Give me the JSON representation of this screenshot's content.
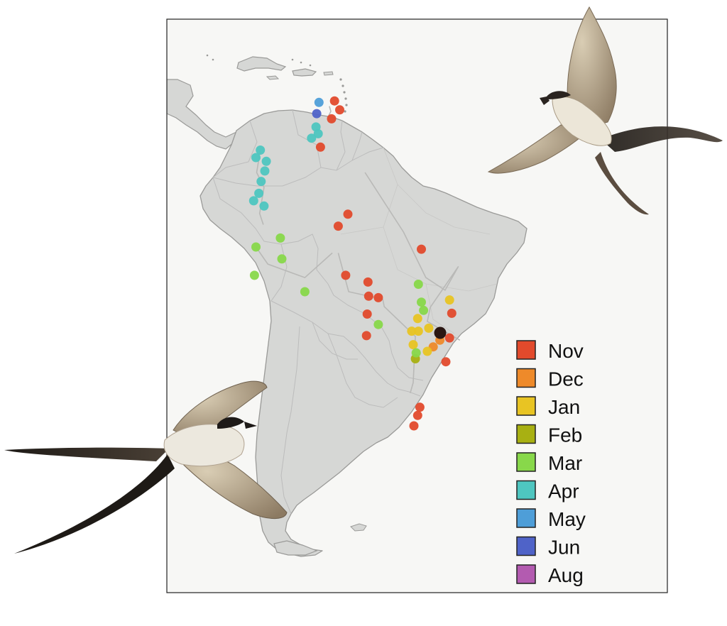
{
  "map": {
    "colors": {
      "background": "#f7f7f5",
      "land": "#d6d7d5",
      "coast": "#9a9a98",
      "borders": "#bcbcbc",
      "track": "#b9b9b7",
      "frame": "#222222"
    }
  },
  "legend": {
    "items": [
      {
        "label": "Nov",
        "color": "#e24a2c"
      },
      {
        "label": "Dec",
        "color": "#ee8a2a"
      },
      {
        "label": "Jan",
        "color": "#e8c423"
      },
      {
        "label": "Feb",
        "color": "#a8b012"
      },
      {
        "label": "Mar",
        "color": "#88d84a"
      },
      {
        "label": "Apr",
        "color": "#4ec6c0"
      },
      {
        "label": "May",
        "color": "#4e9ed8"
      },
      {
        "label": "Jun",
        "color": "#4f63c8"
      },
      {
        "label": "Aug",
        "color": "#b35bb0"
      }
    ]
  },
  "tracks": [
    {
      "month": "Nov",
      "points": [
        [
          -60.2,
          6.9
        ],
        [
          -60.0,
          6.2
        ],
        [
          -60.3,
          5.6
        ]
      ]
    },
    {
      "month": "Nov",
      "points": [
        [
          -55.4,
          -2.0
        ],
        [
          -50.2,
          -10.0
        ],
        [
          -47.2,
          -16.1
        ],
        [
          -44.6,
          -17.8
        ],
        [
          -42.8,
          -14.6
        ],
        [
          -46.6,
          -20.1
        ],
        [
          -47.0,
          -22.0
        ],
        [
          -42.6,
          -24.5
        ]
      ]
    },
    {
      "month": "Nov",
      "points": [
        [
          -59.0,
          -12.8
        ],
        [
          -57.6,
          -18.0
        ],
        [
          -53.0,
          -19.0
        ],
        [
          -52.8,
          -20.0
        ],
        [
          -48.6,
          -24.0
        ],
        [
          -48.9,
          -30.2
        ],
        [
          -49.3,
          -31.6
        ]
      ]
    },
    {
      "month": "Mar",
      "points": [
        [
          -70.1,
          -12.0
        ],
        [
          -68.5,
          -14.3
        ],
        [
          -63.5,
          -16.1
        ],
        [
          -59.8,
          -12.8
        ]
      ]
    },
    {
      "month": "Apr",
      "points": [
        [
          -69.5,
          1.0
        ],
        [
          -70.0,
          -2.0
        ],
        [
          -69.0,
          -4.0
        ],
        [
          -69.6,
          -7.5
        ],
        [
          -69.1,
          -9.0
        ]
      ]
    }
  ],
  "points": [
    {
      "month": "Nov",
      "lon": -59.5,
      "lat": 7.6
    },
    {
      "month": "Nov",
      "lon": -58.8,
      "lat": 6.4
    },
    {
      "month": "Nov",
      "lon": -59.9,
      "lat": 5.2
    },
    {
      "month": "Nov",
      "lon": -61.4,
      "lat": 1.4
    },
    {
      "month": "Nov",
      "lon": -57.7,
      "lat": -7.6
    },
    {
      "month": "Nov",
      "lon": -59.0,
      "lat": -9.2
    },
    {
      "month": "Nov",
      "lon": -58.0,
      "lat": -15.8
    },
    {
      "month": "Nov",
      "lon": -55.0,
      "lat": -16.7
    },
    {
      "month": "Nov",
      "lon": -54.9,
      "lat": -18.6
    },
    {
      "month": "Nov",
      "lon": -53.6,
      "lat": -18.8
    },
    {
      "month": "Nov",
      "lon": -55.1,
      "lat": -21.0
    },
    {
      "month": "Nov",
      "lon": -47.8,
      "lat": -12.3
    },
    {
      "month": "Nov",
      "lon": -55.2,
      "lat": -23.9
    },
    {
      "month": "Nov",
      "lon": -43.7,
      "lat": -20.9
    },
    {
      "month": "Nov",
      "lon": -44.0,
      "lat": -24.2
    },
    {
      "month": "Nov",
      "lon": -44.5,
      "lat": -27.4
    },
    {
      "month": "Nov",
      "lon": -48.0,
      "lat": -33.5
    },
    {
      "month": "Nov",
      "lon": -48.3,
      "lat": -34.6
    },
    {
      "month": "Nov",
      "lon": -48.8,
      "lat": -36.0
    },
    {
      "month": "Dec",
      "lon": -45.3,
      "lat": -24.5
    },
    {
      "month": "Dec",
      "lon": -46.2,
      "lat": -25.4
    },
    {
      "month": "Jan",
      "lon": -44.0,
      "lat": -19.1
    },
    {
      "month": "Jan",
      "lon": -48.3,
      "lat": -21.6
    },
    {
      "month": "Jan",
      "lon": -48.2,
      "lat": -23.3
    },
    {
      "month": "Jan",
      "lon": -49.1,
      "lat": -23.3
    },
    {
      "month": "Jan",
      "lon": -46.8,
      "lat": -22.9
    },
    {
      "month": "Jan",
      "lon": -47.0,
      "lat": -26.0
    },
    {
      "month": "Jan",
      "lon": -48.9,
      "lat": -25.1
    },
    {
      "month": "Feb",
      "lon": -48.6,
      "lat": -27.0
    },
    {
      "month": "Mar",
      "lon": -70.1,
      "lat": -12.0
    },
    {
      "month": "Mar",
      "lon": -66.8,
      "lat": -10.8
    },
    {
      "month": "Mar",
      "lon": -66.6,
      "lat": -13.6
    },
    {
      "month": "Mar",
      "lon": -70.3,
      "lat": -15.8
    },
    {
      "month": "Mar",
      "lon": -63.5,
      "lat": -18.0
    },
    {
      "month": "Mar",
      "lon": -53.6,
      "lat": -22.4
    },
    {
      "month": "Mar",
      "lon": -48.2,
      "lat": -17.0
    },
    {
      "month": "Mar",
      "lon": -47.8,
      "lat": -19.4
    },
    {
      "month": "Mar",
      "lon": -47.5,
      "lat": -20.5
    },
    {
      "month": "Mar",
      "lon": -48.5,
      "lat": -26.2
    },
    {
      "month": "Apr",
      "lon": -69.5,
      "lat": 1.0
    },
    {
      "month": "Apr",
      "lon": -70.1,
      "lat": 0.0
    },
    {
      "month": "Apr",
      "lon": -68.7,
      "lat": -0.5
    },
    {
      "month": "Apr",
      "lon": -68.9,
      "lat": -1.8
    },
    {
      "month": "Apr",
      "lon": -69.4,
      "lat": -3.2
    },
    {
      "month": "Apr",
      "lon": -69.7,
      "lat": -4.8
    },
    {
      "month": "Apr",
      "lon": -70.4,
      "lat": -5.8
    },
    {
      "month": "Apr",
      "lon": -69.0,
      "lat": -6.5
    },
    {
      "month": "Apr",
      "lon": -62.0,
      "lat": 4.1
    },
    {
      "month": "Apr",
      "lon": -61.7,
      "lat": 3.2
    },
    {
      "month": "Apr",
      "lon": -62.6,
      "lat": 2.6
    },
    {
      "month": "May",
      "lon": -61.6,
      "lat": 7.4
    },
    {
      "month": "Jun",
      "lon": -61.9,
      "lat": 5.9
    }
  ]
}
